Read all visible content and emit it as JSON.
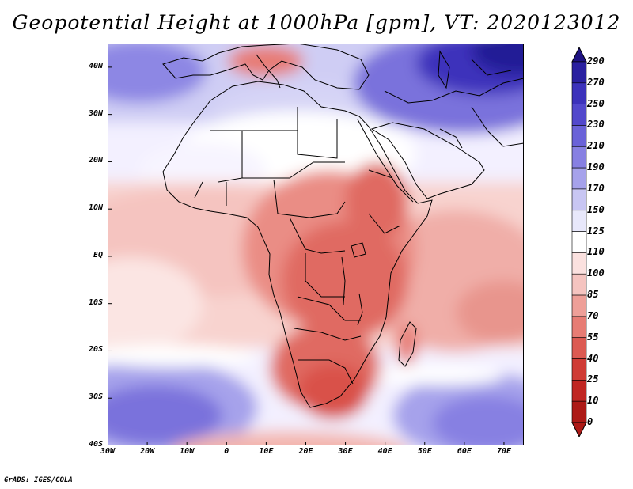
{
  "title": "Geopotential Height at 1000hPa [gpm], VT: 2020123012",
  "footer": "GrADS: IGES/COLA",
  "axes": {
    "lat_ticks": [
      "40N",
      "30N",
      "20N",
      "10N",
      "EQ",
      "10S",
      "20S",
      "30S",
      "40S"
    ],
    "lon_ticks": [
      "30W",
      "20W",
      "10W",
      "0",
      "10E",
      "20E",
      "30E",
      "40E",
      "50E",
      "60E",
      "70E"
    ]
  },
  "colorbar": {
    "levels": [
      "290",
      "270",
      "250",
      "230",
      "210",
      "190",
      "170",
      "150",
      "125",
      "110",
      "100",
      "85",
      "70",
      "55",
      "40",
      "25",
      "10",
      "0"
    ],
    "colors": [
      "#1e1282",
      "#2a20a0",
      "#3c32bb",
      "#5248cc",
      "#6a62d8",
      "#8780e2",
      "#a6a2eb",
      "#c8c6f3",
      "#e8e8fb",
      "#ffffff",
      "#fbe1df",
      "#f5c4c0",
      "#ee9f98",
      "#e77c74",
      "#dc5a52",
      "#cf3b35",
      "#c02622",
      "#ad1a17"
    ]
  },
  "chart_data": {
    "type": "heatmap",
    "title": "Geopotential Height at 1000hPa [gpm], VT: 2020123012",
    "variable": "Geopotential Height",
    "level": "1000hPa",
    "units": "gpm",
    "valid_time": "2020123012",
    "lon_range": [
      -30,
      75
    ],
    "lat_range": [
      -40,
      45
    ],
    "contour_levels": [
      0,
      10,
      25,
      40,
      55,
      70,
      85,
      100,
      110,
      125,
      150,
      170,
      190,
      210,
      230,
      250,
      270,
      290
    ]
  }
}
